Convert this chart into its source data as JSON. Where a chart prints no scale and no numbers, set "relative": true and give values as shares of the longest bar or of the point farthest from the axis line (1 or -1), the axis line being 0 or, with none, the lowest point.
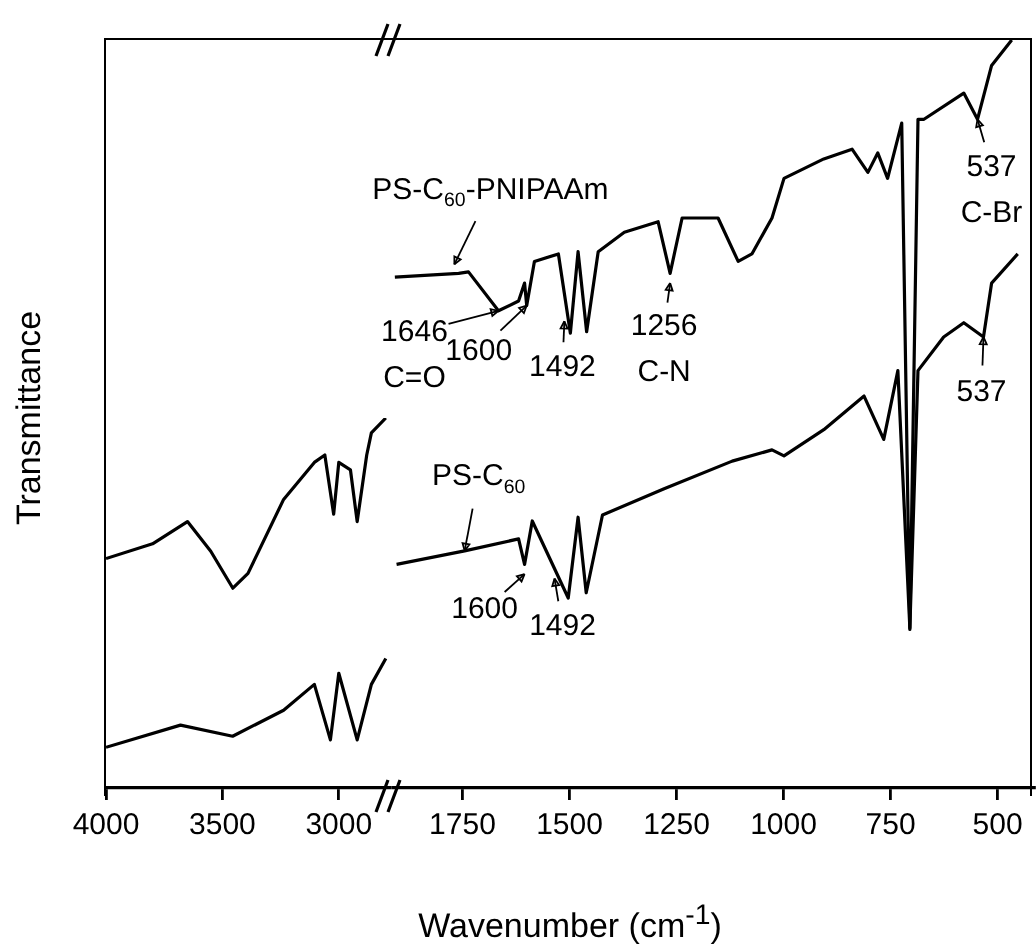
{
  "chart_data": [
    {
      "type": "line",
      "ylabel": "Transmittance",
      "relative": true,
      "xlim": [
        4000,
        2780
      ],
      "xticks": [
        4000,
        3500,
        3000
      ],
      "tick_labels": "x",
      "grid": false,
      "legend": false,
      "marker": "none",
      "series": [
        {
          "color": "#000000",
          "x": [
            4000,
            3800,
            3650,
            3550,
            3455,
            3390,
            3237,
            3105,
            3060,
            3022,
            3000,
            2950,
            2921,
            2880,
            2860,
            2798
          ],
          "values": [
            0.62,
            0.66,
            0.72,
            0.64,
            0.54,
            0.58,
            0.78,
            0.88,
            0.9,
            0.74,
            0.88,
            0.86,
            0.72,
            0.9,
            0.96,
            1.0
          ]
        },
        {
          "color": "#000000",
          "x": [
            4000,
            3680,
            3456,
            3237,
            3105,
            3036,
            3000,
            2921,
            2860,
            2798
          ],
          "values": [
            0.11,
            0.17,
            0.14,
            0.21,
            0.28,
            0.13,
            0.31,
            0.13,
            0.28,
            0.35
          ]
        }
      ]
    },
    {
      "type": "line",
      "xlabel": "Wavenumber (cm$^{-1}$)",
      "relative": true,
      "xlim": [
        1910,
        415
      ],
      "xticks": [
        1750,
        1500,
        1250,
        1000,
        750,
        500
      ],
      "tick_labels": "x",
      "grid": false,
      "legend": false,
      "marker": "none",
      "series": [
        {
          "color": "#000000",
          "x": [
            1908,
            1759,
            1736,
            1666,
            1619,
            1605,
            1600,
            1582,
            1526,
            1498,
            1480,
            1460,
            1433,
            1372,
            1293,
            1265,
            1237,
            1153,
            1106,
            1074,
            1027,
            999,
            906,
            840,
            803,
            780,
            757,
            724,
            705,
            686,
            672,
            579,
            547,
            514,
            467
          ],
          "values": [
            0.683,
            0.688,
            0.69,
            0.638,
            0.651,
            0.675,
            0.645,
            0.704,
            0.714,
            0.608,
            0.717,
            0.61,
            0.717,
            0.743,
            0.757,
            0.688,
            0.762,
            0.762,
            0.704,
            0.714,
            0.762,
            0.815,
            0.841,
            0.854,
            0.823,
            0.849,
            0.815,
            0.889,
            0.212,
            0.894,
            0.894,
            0.929,
            0.894,
            0.966,
            1.0
          ]
        },
        {
          "color": "#000000",
          "x": [
            1904,
            1745,
            1619,
            1605,
            1587,
            1503,
            1480,
            1461,
            1423,
            1279,
            1120,
            1027,
            999,
            906,
            812,
            766,
            733,
            705,
            686,
            626,
            579,
            533,
            514,
            453
          ],
          "values": [
            0.299,
            0.317,
            0.333,
            0.299,
            0.357,
            0.254,
            0.362,
            0.261,
            0.365,
            0.4,
            0.437,
            0.452,
            0.444,
            0.479,
            0.524,
            0.466,
            0.558,
            0.214,
            0.558,
            0.603,
            0.622,
            0.603,
            0.675,
            0.714
          ]
        }
      ],
      "annotations": [
        {
          "text": "PS-C$_{60}$-PNIPAAm",
          "x": 1769,
          "y": 0.7
        },
        {
          "text": "1646\nC=O",
          "x": 1666,
          "y": 0.638
        },
        {
          "text": "1600",
          "x": 1600,
          "y": 0.645
        },
        {
          "text": "1492",
          "x": 1512,
          "y": 0.624
        },
        {
          "text": "1256\nC-N",
          "x": 1265,
          "y": 0.675
        },
        {
          "text": "537\nC-Br",
          "x": 547,
          "y": 0.894
        },
        {
          "text": "PS-C$_{60}$",
          "x": 1745,
          "y": 0.317
        },
        {
          "text": "1600",
          "x": 1605,
          "y": 0.286
        },
        {
          "text": "1492",
          "x": 1535,
          "y": 0.28
        },
        {
          "text": "537",
          "x": 533,
          "y": 0.603
        }
      ]
    }
  ]
}
